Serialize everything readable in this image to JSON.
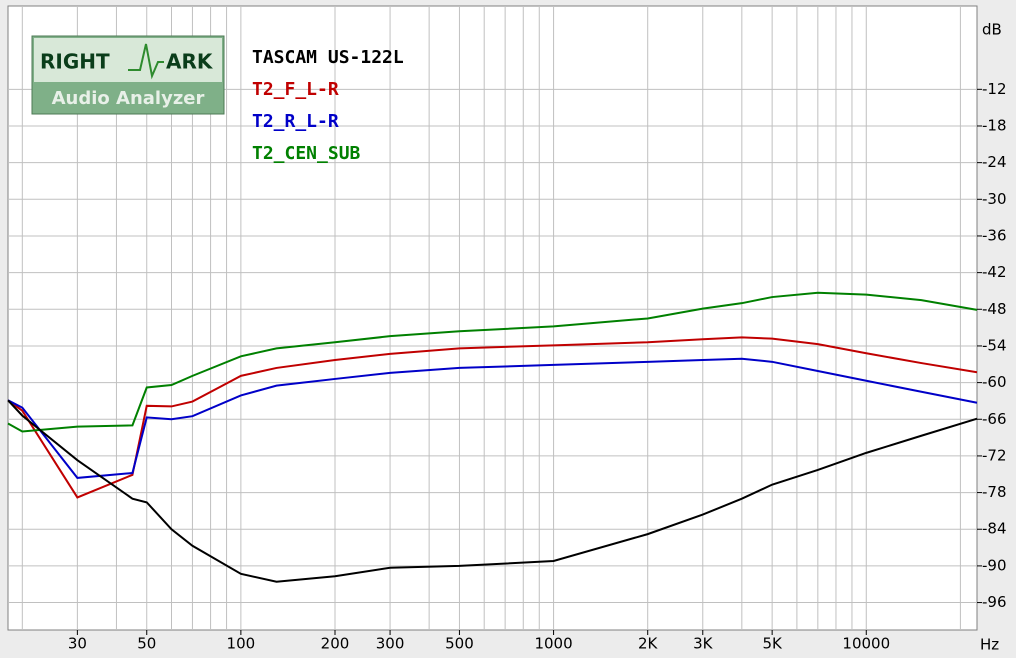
{
  "chart_data": {
    "type": "line",
    "logo": {
      "top_left": "RIGHT",
      "top_right": "ARK",
      "bottom": "Audio Analyzer"
    },
    "title": "TASCAM US-122L",
    "y_unit": "dB",
    "x_unit": "Hz",
    "x": [
      18,
      20,
      30,
      45,
      50,
      60,
      70,
      100,
      130,
      200,
      300,
      500,
      1000,
      2000,
      3000,
      4000,
      5000,
      7000,
      10000,
      15000,
      22600
    ],
    "series": [
      {
        "name": "T2_F_L-R",
        "color": "#c00000",
        "values": [
          -62.9,
          -64.6,
          -78.8,
          -75.1,
          -63.8,
          -63.9,
          -63.1,
          -58.9,
          -57.6,
          -56.3,
          -55.3,
          -54.4,
          -53.9,
          -53.4,
          -52.9,
          -52.6,
          -52.8,
          -53.7,
          -55.2,
          -56.8,
          -58.3
        ]
      },
      {
        "name": "T2_R_L-R",
        "color": "#0000c8",
        "values": [
          -62.9,
          -64.1,
          -75.6,
          -74.8,
          -65.7,
          -66.0,
          -65.5,
          -62.1,
          -60.5,
          -59.4,
          -58.4,
          -57.6,
          -57.1,
          -56.6,
          -56.3,
          -56.1,
          -56.6,
          -58.1,
          -59.7,
          -61.5,
          -63.3
        ]
      },
      {
        "name": "T2_CEN_SUB",
        "color": "#008000",
        "values": [
          -66.7,
          -68.0,
          -67.2,
          -67.0,
          -60.8,
          -60.4,
          -58.9,
          -55.7,
          -54.4,
          -53.4,
          -52.4,
          -51.6,
          -50.8,
          -49.5,
          -47.9,
          -47.0,
          -46.0,
          -45.3,
          -45.6,
          -46.5,
          -48.1
        ]
      },
      {
        "color": "#000000",
        "values": [
          -62.9,
          -65.4,
          -72.7,
          -79.0,
          -79.6,
          -84.0,
          -86.7,
          -91.3,
          -92.6,
          -91.7,
          -90.3,
          -90.0,
          -89.2,
          -84.8,
          -81.6,
          -79.0,
          -76.7,
          -74.3,
          -71.5,
          -68.7,
          -65.9
        ]
      }
    ],
    "xlim": [
      18,
      22600
    ],
    "ylim": [
      -100,
      0
    ],
    "log_x": true,
    "grid": true,
    "xticks": [
      30,
      50,
      100,
      200,
      300,
      500,
      1000,
      {
        "value": 2000,
        "label": "2K"
      },
      {
        "value": 3000,
        "label": "3K"
      },
      {
        "value": 5000,
        "label": "5K"
      },
      10000
    ],
    "xgrid": [
      20,
      30,
      40,
      50,
      60,
      70,
      80,
      90,
      100,
      200,
      300,
      400,
      500,
      600,
      700,
      800,
      900,
      1000,
      2000,
      3000,
      4000,
      5000,
      6000,
      7000,
      8000,
      9000,
      10000,
      20000
    ],
    "yticks": [
      -12,
      -18,
      -24,
      -30,
      -36,
      -42,
      -48,
      -54,
      -60,
      -66,
      -72,
      -78,
      -84,
      -90,
      -96
    ]
  }
}
